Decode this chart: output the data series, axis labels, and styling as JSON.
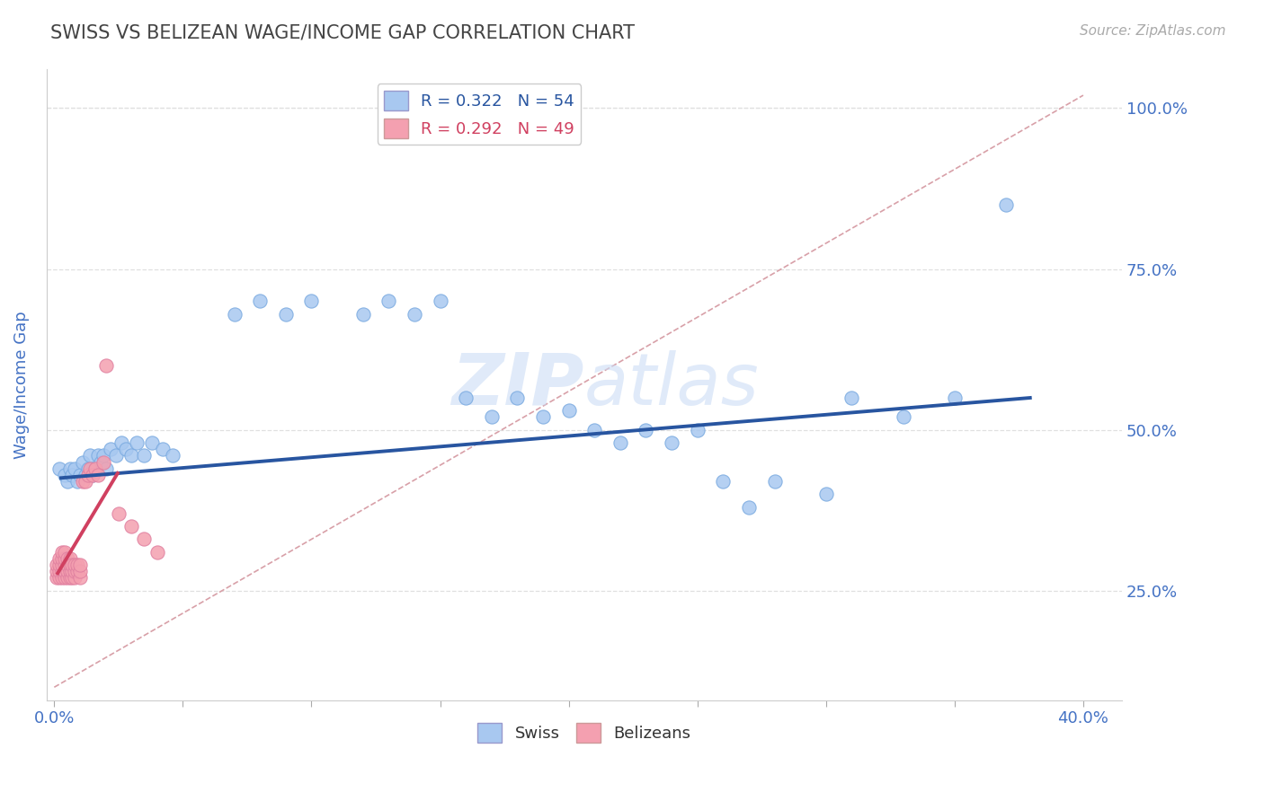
{
  "title": "SWISS VS BELIZEAN WAGE/INCOME GAP CORRELATION CHART",
  "source": "Source: ZipAtlas.com",
  "xlabel_ticks": [
    0.0,
    0.05,
    0.1,
    0.15,
    0.2,
    0.25,
    0.3,
    0.35,
    0.4
  ],
  "ylabel_ticks": [
    0.25,
    0.5,
    0.75,
    1.0
  ],
  "ylabel_labels": [
    "25.0%",
    "50.0%",
    "75.0%",
    "100.0%"
  ],
  "xlim": [
    -0.003,
    0.415
  ],
  "ylim": [
    0.08,
    1.06
  ],
  "ylabel": "Wage/Income Gap",
  "swiss_R": "0.322",
  "swiss_N": "54",
  "belizean_R": "0.292",
  "belizean_N": "49",
  "swiss_color": "#a8c8f0",
  "belizean_color": "#f4a0b0",
  "swiss_line_color": "#2855a0",
  "belizean_line_color": "#d04060",
  "ref_line_color": "#d8a0a8",
  "legend_swiss_label": "Swiss",
  "legend_belizean_label": "Belizeans",
  "swiss_x": [
    0.002,
    0.004,
    0.005,
    0.006,
    0.007,
    0.008,
    0.009,
    0.01,
    0.011,
    0.012,
    0.013,
    0.014,
    0.015,
    0.016,
    0.017,
    0.018,
    0.019,
    0.02,
    0.022,
    0.024,
    0.026,
    0.028,
    0.03,
    0.032,
    0.035,
    0.038,
    0.042,
    0.046,
    0.07,
    0.08,
    0.09,
    0.1,
    0.12,
    0.13,
    0.14,
    0.15,
    0.16,
    0.17,
    0.18,
    0.19,
    0.2,
    0.21,
    0.22,
    0.23,
    0.24,
    0.25,
    0.26,
    0.27,
    0.28,
    0.3,
    0.31,
    0.33,
    0.35,
    0.37
  ],
  "swiss_y": [
    0.44,
    0.43,
    0.42,
    0.44,
    0.43,
    0.44,
    0.42,
    0.43,
    0.45,
    0.43,
    0.44,
    0.46,
    0.43,
    0.44,
    0.46,
    0.45,
    0.46,
    0.44,
    0.47,
    0.46,
    0.48,
    0.47,
    0.46,
    0.48,
    0.46,
    0.48,
    0.47,
    0.46,
    0.68,
    0.7,
    0.68,
    0.7,
    0.68,
    0.7,
    0.68,
    0.7,
    0.55,
    0.52,
    0.55,
    0.52,
    0.53,
    0.5,
    0.48,
    0.5,
    0.48,
    0.5,
    0.42,
    0.38,
    0.42,
    0.4,
    0.55,
    0.52,
    0.55,
    0.85
  ],
  "belizean_x": [
    0.001,
    0.001,
    0.001,
    0.002,
    0.002,
    0.002,
    0.002,
    0.003,
    0.003,
    0.003,
    0.003,
    0.003,
    0.004,
    0.004,
    0.004,
    0.004,
    0.004,
    0.005,
    0.005,
    0.005,
    0.005,
    0.006,
    0.006,
    0.006,
    0.006,
    0.007,
    0.007,
    0.007,
    0.008,
    0.008,
    0.008,
    0.009,
    0.009,
    0.01,
    0.01,
    0.01,
    0.011,
    0.012,
    0.013,
    0.014,
    0.015,
    0.016,
    0.017,
    0.019,
    0.02,
    0.025,
    0.03,
    0.035,
    0.04
  ],
  "belizean_y": [
    0.27,
    0.28,
    0.29,
    0.27,
    0.28,
    0.29,
    0.3,
    0.27,
    0.28,
    0.29,
    0.3,
    0.31,
    0.27,
    0.28,
    0.29,
    0.3,
    0.31,
    0.27,
    0.28,
    0.29,
    0.3,
    0.27,
    0.28,
    0.29,
    0.3,
    0.27,
    0.28,
    0.29,
    0.27,
    0.28,
    0.29,
    0.28,
    0.29,
    0.27,
    0.28,
    0.29,
    0.42,
    0.42,
    0.43,
    0.44,
    0.43,
    0.44,
    0.43,
    0.45,
    0.6,
    0.37,
    0.35,
    0.33,
    0.31
  ],
  "swiss_trend_x": [
    0.002,
    0.38
  ],
  "swiss_trend_y": [
    0.425,
    0.55
  ],
  "belizean_trend_x": [
    0.001,
    0.025
  ],
  "belizean_trend_y": [
    0.275,
    0.435
  ],
  "ref_line_x": [
    0.0,
    0.4
  ],
  "ref_line_y": [
    0.1,
    1.02
  ],
  "background_color": "#ffffff",
  "grid_color": "#e0e0e0",
  "title_color": "#444444",
  "axis_label_color": "#4472c4",
  "watermark_color": "#ccddf5",
  "watermark_alpha": 0.6
}
